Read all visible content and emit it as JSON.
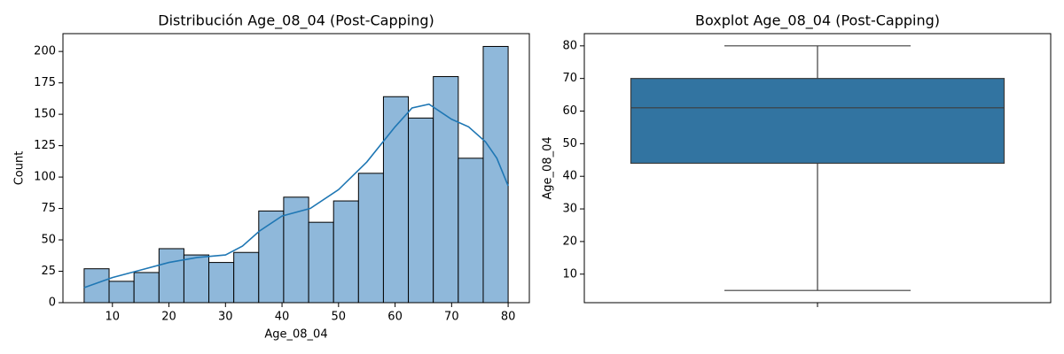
{
  "chart_data": [
    {
      "type": "histogram",
      "title": "Distribución Age_08_04 (Post-Capping)",
      "x_label": "Age_08_04",
      "y_label": "Count",
      "bins": [
        5,
        9.41,
        13.82,
        18.24,
        22.65,
        27.06,
        31.47,
        35.88,
        40.29,
        44.71,
        49.12,
        53.53,
        57.94,
        62.35,
        66.76,
        71.18,
        75.59,
        80
      ],
      "counts": [
        27,
        17,
        24,
        43,
        38,
        32,
        40,
        73,
        84,
        64,
        81,
        103,
        164,
        147,
        180,
        115,
        204
      ],
      "color": "#8fb8da",
      "edgecolor": "#000000",
      "kde": {
        "x": [
          5,
          10,
          15,
          20,
          25,
          30,
          33,
          36,
          40,
          45,
          50,
          55,
          60,
          63,
          66,
          70,
          73,
          76,
          78,
          80
        ],
        "values": [
          12,
          20,
          26,
          32,
          36,
          38,
          45,
          57,
          69,
          75,
          90,
          112,
          140,
          155,
          158,
          146,
          140,
          128,
          115,
          93
        ],
        "color": "#1f77b4"
      },
      "xlim": [
        1.25,
        83.75
      ],
      "xticks": [
        10,
        20,
        30,
        40,
        50,
        60,
        70,
        80
      ],
      "ylim": [
        0,
        214.2
      ],
      "yticks": [
        0,
        25,
        50,
        75,
        100,
        125,
        150,
        175,
        200
      ]
    },
    {
      "type": "box",
      "title": "Boxplot Age_08_04 (Post-Capping)",
      "y_label": "Age_08_04",
      "whisker_low": 5,
      "q1": 44,
      "median": 61,
      "q3": 70,
      "whisker_high": 80,
      "color": "#3274a1",
      "ylim": [
        1.25,
        83.75
      ],
      "yticks": [
        10,
        20,
        30,
        40,
        50,
        60,
        70,
        80
      ]
    }
  ]
}
